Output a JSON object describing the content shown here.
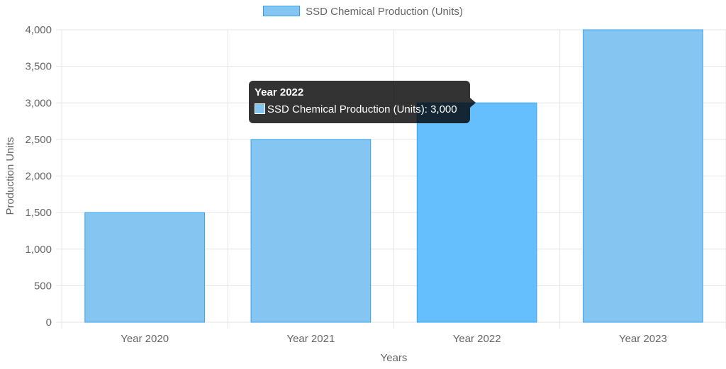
{
  "chart_data": {
    "type": "bar",
    "categories": [
      "Year 2020",
      "Year 2021",
      "Year 2022",
      "Year 2023"
    ],
    "series": [
      {
        "name": "SSD Chemical Production (Units)",
        "values": [
          1500,
          2500,
          3000,
          4000
        ]
      }
    ],
    "xlabel": "Years",
    "ylabel": "Production Units",
    "ylim": [
      0,
      4000
    ],
    "yticks": [
      "0",
      "500",
      "1,000",
      "1,500",
      "2,000",
      "2,500",
      "3,000",
      "3,500",
      "4,000"
    ],
    "ytick_values": [
      0,
      500,
      1000,
      1500,
      2000,
      2500,
      3000,
      3500,
      4000
    ],
    "grid": true,
    "legend_position": "top-center",
    "colors": {
      "bar_fill": "#85C5F2",
      "bar_fill_hover": "#65BFFD",
      "bar_border": "#36A2EB",
      "grid": "#e5e5e5",
      "text": "#666666"
    },
    "highlighted_category": "Year 2022"
  },
  "tooltip": {
    "title": "Year 2022",
    "body": "SSD Chemical Production (Units): 3,000"
  }
}
